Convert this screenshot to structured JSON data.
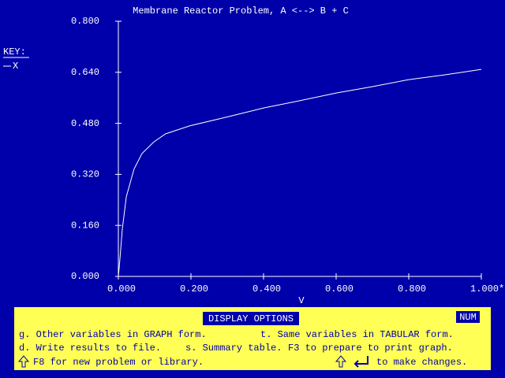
{
  "chart_data": {
    "type": "line",
    "title": "Membrane Reactor Problem, A <--> B + C",
    "x_label": "V",
    "legend_title": "KEY:",
    "x": [
      0,
      0.004,
      0.011,
      0.022,
      0.043,
      0.065,
      0.098,
      0.13,
      0.196,
      0.3,
      0.4,
      0.5,
      0.6,
      0.7,
      0.8,
      0.9,
      1.0
    ],
    "series": [
      {
        "name": "X",
        "color": "#ffffff",
        "values": [
          0,
          0.05,
          0.15,
          0.25,
          0.336,
          0.385,
          0.422,
          0.447,
          0.472,
          0.5,
          0.528,
          0.551,
          0.575,
          0.595,
          0.617,
          0.632,
          0.649
        ]
      }
    ],
    "xlim": [
      0,
      1
    ],
    "ylim": [
      0,
      0.8
    ],
    "xticks": [
      {
        "value": 0,
        "label": "0.000"
      },
      {
        "value": 0.2,
        "label": "0.200"
      },
      {
        "value": 0.4,
        "label": "0.400"
      },
      {
        "value": 0.6,
        "label": "0.600"
      },
      {
        "value": 0.8,
        "label": "0.800"
      },
      {
        "value": 1,
        "label": "1.000*"
      }
    ],
    "yticks": [
      {
        "value": 0,
        "label": "0.000"
      },
      {
        "value": 0.16,
        "label": "0.160"
      },
      {
        "value": 0.32,
        "label": "0.320"
      },
      {
        "value": 0.48,
        "label": "0.480"
      },
      {
        "value": 0.64,
        "label": "0.640"
      },
      {
        "value": 0.8,
        "label": "0.800"
      }
    ],
    "grid": false
  },
  "panel": {
    "title": "DISPLAY OPTIONS",
    "status": "NUM",
    "options": [
      "g. Other variables in GRAPH form.",
      "t. Same variables in TABULAR form.",
      "d. Write results to file.",
      "s. Summary table.",
      "F3 to prepare to print graph.",
      "F8 for new problem or library.",
      "to make changes."
    ]
  }
}
